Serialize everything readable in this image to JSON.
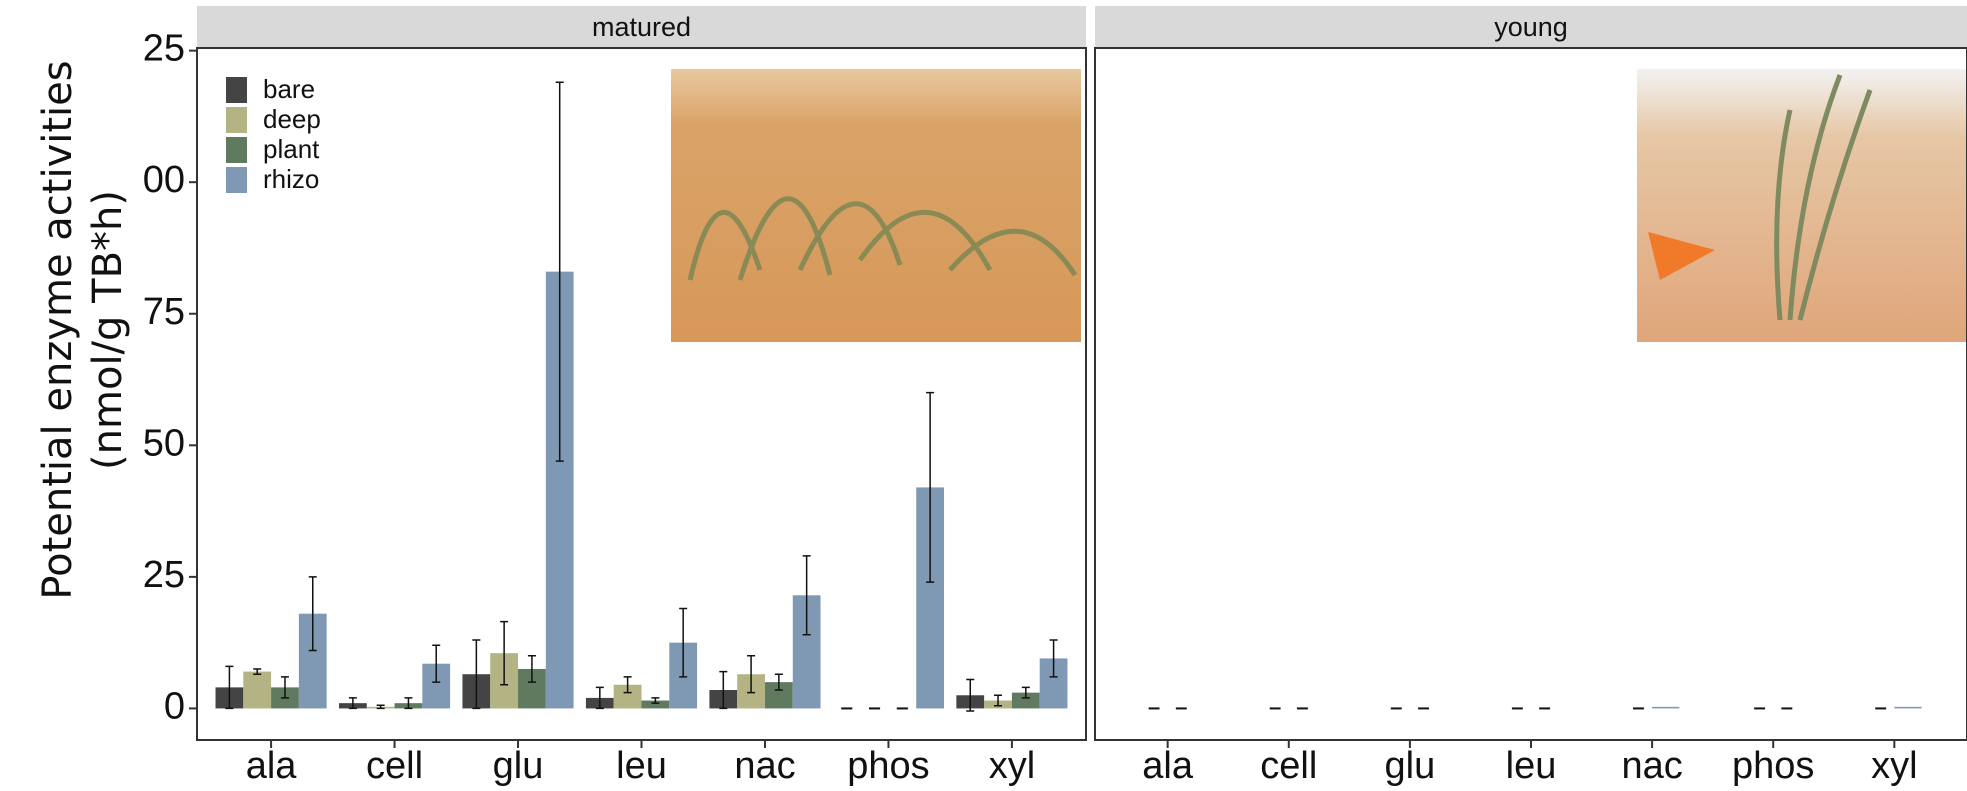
{
  "chart_data": {
    "type": "bar",
    "y_label": [
      "Potential enzyme activities",
      "(nmol/g TB*h)"
    ],
    "ylim": [
      -6,
      125.5
    ],
    "yticks": [
      0,
      25,
      50,
      75,
      {
        "value": 100,
        "label": "00"
      },
      {
        "value": 125,
        "label": "25"
      }
    ],
    "categories": [
      "ala",
      "cell",
      "glu",
      "leu",
      "nac",
      "phos",
      "xyl"
    ],
    "legend": [
      {
        "name": "bare",
        "color": "#444444"
      },
      {
        "name": "deep",
        "color": "#b3b384"
      },
      {
        "name": "plant",
        "color": "#607a5f"
      },
      {
        "name": "rhizo",
        "color": "#7f99b5"
      }
    ],
    "panels": [
      {
        "title": "matured",
        "series": [
          {
            "name": "bare",
            "color": "#444444",
            "values": [
              4,
              1,
              6.5,
              2,
              3.5,
              0,
              2.5
            ],
            "errors": [
              4,
              1,
              6.5,
              2,
              3.5,
              0,
              3
            ]
          },
          {
            "name": "deep",
            "color": "#b3b384",
            "values": [
              7,
              0.3,
              10.5,
              4.5,
              6.5,
              0,
              1.5
            ],
            "errors": [
              0.5,
              0.3,
              6,
              1.5,
              3.5,
              0,
              1
            ]
          },
          {
            "name": "plant",
            "color": "#607a5f",
            "values": [
              4,
              1,
              7.5,
              1.5,
              5,
              0,
              3
            ],
            "errors": [
              2,
              1,
              2.5,
              0.5,
              1.5,
              0,
              1
            ]
          },
          {
            "name": "rhizo",
            "color": "#7f99b5",
            "values": [
              18,
              8.5,
              83,
              12.5,
              21.5,
              42,
              9.5
            ],
            "errors": [
              7,
              3.5,
              36,
              6.5,
              7.5,
              18,
              3.5
            ]
          }
        ]
      },
      {
        "title": "young",
        "series": [
          {
            "name": "bare",
            "color": "#444444",
            "values": [
              0,
              0,
              0,
              0,
              0,
              0,
              0
            ]
          },
          {
            "name": "rhizo",
            "color": "#7f99b5",
            "values": [
              0,
              0,
              0,
              0,
              0.3,
              0,
              0.3
            ]
          }
        ]
      }
    ]
  }
}
